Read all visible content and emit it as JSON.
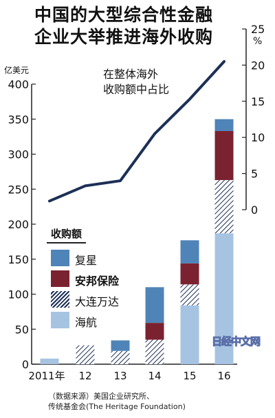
{
  "title": [
    "中国的大型综合性金融",
    "企业大举推进海外收购"
  ],
  "source_lines": [
    "（数据来源）美国企业研究所、",
    "传统基金会(The Heritage Foundation)"
  ],
  "watermark": "日经中文网",
  "colors": {
    "fosun": "#4f84b8",
    "anbang": "#7b2230",
    "dalian_wanda": "#8eaad0",
    "hna": "#a7c3e2",
    "line": "#1c2f56"
  },
  "chart_data": {
    "type": "bar",
    "stacked": true,
    "categories": [
      "2011年",
      "12",
      "13",
      "14",
      "15",
      "16"
    ],
    "left_axis": {
      "unit": "亿美元",
      "ylim": [
        0,
        400
      ],
      "ticks": [
        "0",
        "50",
        "100",
        "150",
        "200",
        "250",
        "300",
        "350",
        "400"
      ]
    },
    "right_axis": {
      "unit": "%",
      "ylim": [
        0,
        25
      ],
      "ticks": [
        "0",
        "5",
        "10",
        "15",
        "20",
        "25"
      ]
    },
    "legend_title": "收购额",
    "series": [
      {
        "name": "海航",
        "key": "hna",
        "values": [
          8,
          0,
          0,
          0,
          84,
          187
        ]
      },
      {
        "name": "大连万达",
        "key": "dalian_wanda",
        "values": [
          0,
          27,
          19,
          35,
          30,
          76
        ]
      },
      {
        "name": "安邦保险",
        "key": "anbang",
        "values": [
          0,
          0,
          0,
          24,
          30,
          70
        ]
      },
      {
        "name": "复星",
        "key": "fosun",
        "values": [
          0,
          0,
          15,
          51,
          33,
          17
        ]
      }
    ],
    "line_series": {
      "label": [
        "在整体海外",
        "收购额中占比"
      ],
      "axis": "right",
      "values": [
        1.2,
        3.3,
        4.0,
        10.5,
        15.3,
        20.5
      ]
    }
  }
}
